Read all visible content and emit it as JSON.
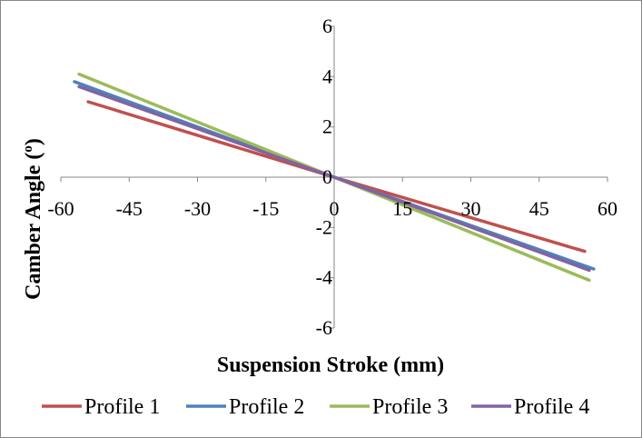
{
  "chart_data": {
    "type": "line",
    "title": "",
    "xlabel": "Suspension Stroke (mm)",
    "ylabel_main": "Camber Angle (",
    "ylabel_sup": "o",
    "ylabel_close": ")",
    "xlim": [
      -60,
      60
    ],
    "ylim": [
      -6,
      6
    ],
    "x_ticks": [
      -60,
      -45,
      -30,
      -15,
      0,
      15,
      30,
      45,
      60
    ],
    "y_ticks": [
      -6,
      -4,
      -2,
      0,
      2,
      4,
      6
    ],
    "x_tick_labels": [
      "-60",
      "-45",
      "-30",
      "-15",
      "0",
      "15",
      "30",
      "45",
      "60"
    ],
    "y_tick_labels": [
      "-6",
      "-4",
      "-2",
      "0",
      "2",
      "4",
      "6"
    ],
    "grid": false,
    "legend_position": "bottom",
    "series": [
      {
        "name": "Profile 1",
        "color": "#C0504D",
        "x": [
          -54,
          0,
          55
        ],
        "y": [
          3.0,
          0,
          -2.95
        ]
      },
      {
        "name": "Profile 2",
        "color": "#4F81BD",
        "x": [
          -57,
          0,
          57
        ],
        "y": [
          3.8,
          0,
          -3.65
        ]
      },
      {
        "name": "Profile 3",
        "color": "#9BBB59",
        "x": [
          -56,
          0,
          56
        ],
        "y": [
          4.1,
          0,
          -4.1
        ]
      },
      {
        "name": "Profile 4",
        "color": "#8064A2",
        "x": [
          -56,
          0,
          56
        ],
        "y": [
          3.6,
          0,
          -3.7
        ]
      }
    ]
  }
}
